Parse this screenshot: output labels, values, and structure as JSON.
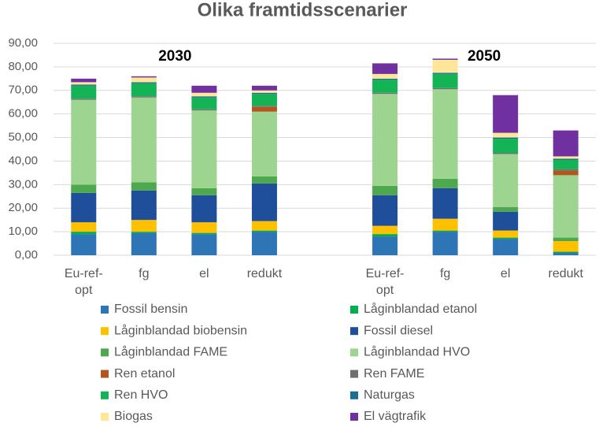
{
  "chart_data": {
    "type": "stacked-bar",
    "title": "Olika framtidsscenarier",
    "annotations": [
      "2030",
      "2050"
    ],
    "categories": [
      "Eu-ref-opt",
      "fg",
      "el",
      "redukt",
      null,
      "Eu-ref-opt",
      "fg",
      "el",
      "redukt"
    ],
    "ylim": [
      0,
      90
    ],
    "yticks": [
      {
        "value": 0,
        "label": "0,00"
      },
      {
        "value": 10,
        "label": "10,00"
      },
      {
        "value": 20,
        "label": "20,00"
      },
      {
        "value": 30,
        "label": "30,00"
      },
      {
        "value": 40,
        "label": "40,00"
      },
      {
        "value": 50,
        "label": "50,00"
      },
      {
        "value": 60,
        "label": "60,00"
      },
      {
        "value": 70,
        "label": "70,00"
      },
      {
        "value": 80,
        "label": "80,00"
      },
      {
        "value": 90,
        "label": "90,00"
      }
    ],
    "grid": true,
    "series": [
      {
        "name": "Fossil bensin",
        "color": "#2e75b6",
        "values": [
          9,
          9.5,
          9,
          10,
          null,
          8,
          10,
          7,
          1
        ]
      },
      {
        "name": "Låginblandad etanol",
        "color": "#00b050",
        "values": [
          1,
          0.5,
          0.5,
          0.5,
          null,
          1,
          0.5,
          0.5,
          0.5
        ]
      },
      {
        "name": "Låginblandad biobensin",
        "color": "#ffc000",
        "values": [
          4,
          5,
          4.5,
          4,
          null,
          3.5,
          5,
          3,
          4.5
        ]
      },
      {
        "name": "Fossil diesel",
        "color": "#1f4e9a",
        "values": [
          12.5,
          12.5,
          11.5,
          16,
          null,
          13,
          13,
          8,
          0
        ]
      },
      {
        "name": "Låginblandad FAME",
        "color": "#4ea84e",
        "values": [
          3.5,
          3.5,
          3,
          3,
          null,
          4,
          4,
          2,
          1.5
        ]
      },
      {
        "name": "Låginblandad HVO",
        "color": "#9dd490",
        "values": [
          36,
          36,
          33,
          27.5,
          null,
          39,
          38,
          22.5,
          26.5
        ]
      },
      {
        "name": "Ren etanol",
        "color": "#b0561e",
        "values": [
          0,
          0,
          0,
          2,
          null,
          0,
          0,
          0,
          2
        ]
      },
      {
        "name": "Ren FAME",
        "color": "#707070",
        "values": [
          0.5,
          0.5,
          0.5,
          0.5,
          null,
          0.5,
          0.5,
          0.5,
          0.5
        ]
      },
      {
        "name": "Ren HVO",
        "color": "#14b356",
        "values": [
          5.5,
          5.5,
          5,
          5,
          null,
          5.5,
          6,
          6,
          4
        ]
      },
      {
        "name": "Naturgas",
        "color": "#1a6e8f",
        "values": [
          0.5,
          0.5,
          0.5,
          0.5,
          null,
          0.5,
          0.5,
          0.5,
          0.5
        ]
      },
      {
        "name": "Biogas",
        "color": "#ffe699",
        "values": [
          1,
          2,
          1.5,
          1,
          null,
          2,
          5.5,
          2,
          1
        ]
      },
      {
        "name": "El vägtrafik",
        "color": "#7030a0",
        "values": [
          1.5,
          0.5,
          3,
          2,
          null,
          4.5,
          0.5,
          16,
          11
        ]
      }
    ]
  }
}
